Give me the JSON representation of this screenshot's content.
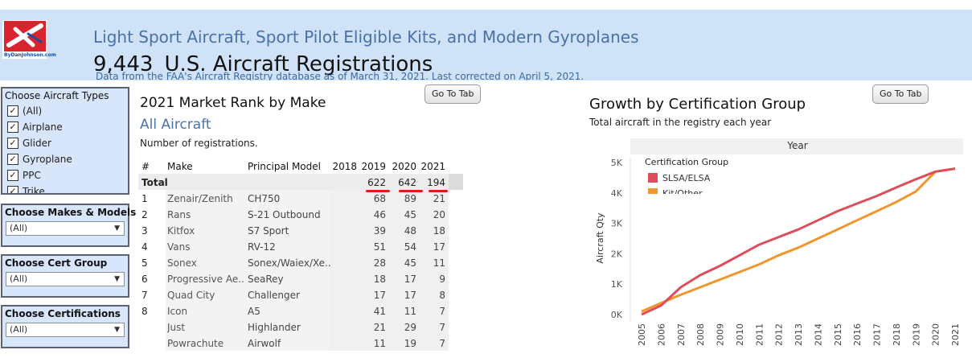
{
  "header": {
    "subtitle": "Light Sport Aircraft, Sport Pilot Eligible Kits, and Modern Gyroplanes",
    "count": "9,443",
    "title": "U.S. Aircraft Registrations",
    "note": "Data from the FAA's Aircraft Registry database as of March 31, 2021.  Last corrected on April 5, 2021.",
    "logo_text": "ByDanJohnson.com"
  },
  "filters": {
    "aircraft_types": {
      "title": "Choose Aircraft Types",
      "items": [
        "(All)",
        "Airplane",
        "Glider",
        "Gyroplane",
        "PPC",
        "Trike"
      ]
    },
    "makes_models": {
      "title": "Choose Makes & Models",
      "value": "(All)"
    },
    "cert_group": {
      "title": "Choose Cert Group",
      "value": "(All)"
    },
    "certifications": {
      "title": "Choose Certifications",
      "value": "(All)"
    }
  },
  "buttons": {
    "go_to_tab": "Go To Tab"
  },
  "table": {
    "title": "2021  Market Rank by Make",
    "subtitle": "All Aircraft",
    "note": "Number of registrations.",
    "headers": {
      "rank": "#",
      "make": "Make",
      "model": "Principal Model",
      "y2018": "2018",
      "y2019": "2019",
      "y2020": "2020",
      "y2021": "2021"
    },
    "total": {
      "label": "Total",
      "y2019": "622",
      "y2020": "642",
      "y2021": "194"
    },
    "rows": [
      {
        "rank": "1",
        "make": "Zenair/Zenith",
        "model": "CH750",
        "y2019": "68",
        "y2020": "89",
        "y2021": "21"
      },
      {
        "rank": "2",
        "make": "Rans",
        "model": "S-21 Outbound",
        "y2019": "46",
        "y2020": "45",
        "y2021": "20"
      },
      {
        "rank": "3",
        "make": "Kitfox",
        "model": "S7 Sport",
        "y2019": "39",
        "y2020": "48",
        "y2021": "18"
      },
      {
        "rank": "4",
        "make": "Vans",
        "model": "RV-12",
        "y2019": "51",
        "y2020": "54",
        "y2021": "17"
      },
      {
        "rank": "5",
        "make": "Sonex",
        "model": "Sonex/Waiex/Xe..",
        "y2019": "28",
        "y2020": "45",
        "y2021": "11"
      },
      {
        "rank": "6",
        "make": "Progressive Ae..",
        "model": "SeaRey",
        "y2019": "18",
        "y2020": "17",
        "y2021": "9"
      },
      {
        "rank": "7",
        "make": "Quad City",
        "model": "Challenger",
        "y2019": "17",
        "y2020": "17",
        "y2021": "8"
      },
      {
        "rank": "8",
        "make": "Icon",
        "model": "A5",
        "y2019": "41",
        "y2020": "11",
        "y2021": "7"
      },
      {
        "rank": "",
        "make": "Just",
        "model": "Highlander",
        "y2019": "21",
        "y2020": "29",
        "y2021": "7"
      },
      {
        "rank": "",
        "make": "Powrachute",
        "model": "Airwolf",
        "y2019": "11",
        "y2020": "19",
        "y2021": "7"
      }
    ]
  },
  "growth": {
    "title": "Growth by Certification Group",
    "note": "Total aircraft in the registry each year",
    "colors": {
      "slsa": "#dc4f5a",
      "kit": "#f0962e"
    }
  },
  "chart_data": {
    "type": "line",
    "title": "Growth by Certification Group",
    "xlabel": "Year",
    "ylabel": "Aircraft Qty",
    "x": [
      "2005",
      "2006",
      "2007",
      "2008",
      "2009",
      "2010",
      "2011",
      "2012",
      "2013",
      "2014",
      "2015",
      "2016",
      "2017",
      "2018",
      "2019",
      "2020",
      "2021"
    ],
    "yticks": [
      "0K",
      "1K",
      "2K",
      "3K",
      "4K",
      "5K"
    ],
    "ylim": [
      0,
      5000
    ],
    "legend_title": "Certification Group",
    "legend_position": "top-left",
    "series": [
      {
        "name": "SLSA/ELSA",
        "color": "#dc4f5a",
        "values": [
          0,
          300,
          900,
          1300,
          1600,
          1950,
          2300,
          2550,
          2800,
          3100,
          3400,
          3650,
          3900,
          4180,
          4450,
          4700,
          4800
        ]
      },
      {
        "name": "Kit/Other",
        "color": "#f0962e",
        "values": [
          100,
          380,
          650,
          900,
          1150,
          1400,
          1650,
          1950,
          2200,
          2500,
          2800,
          3100,
          3400,
          3700,
          4050,
          4700,
          4800
        ]
      }
    ]
  }
}
